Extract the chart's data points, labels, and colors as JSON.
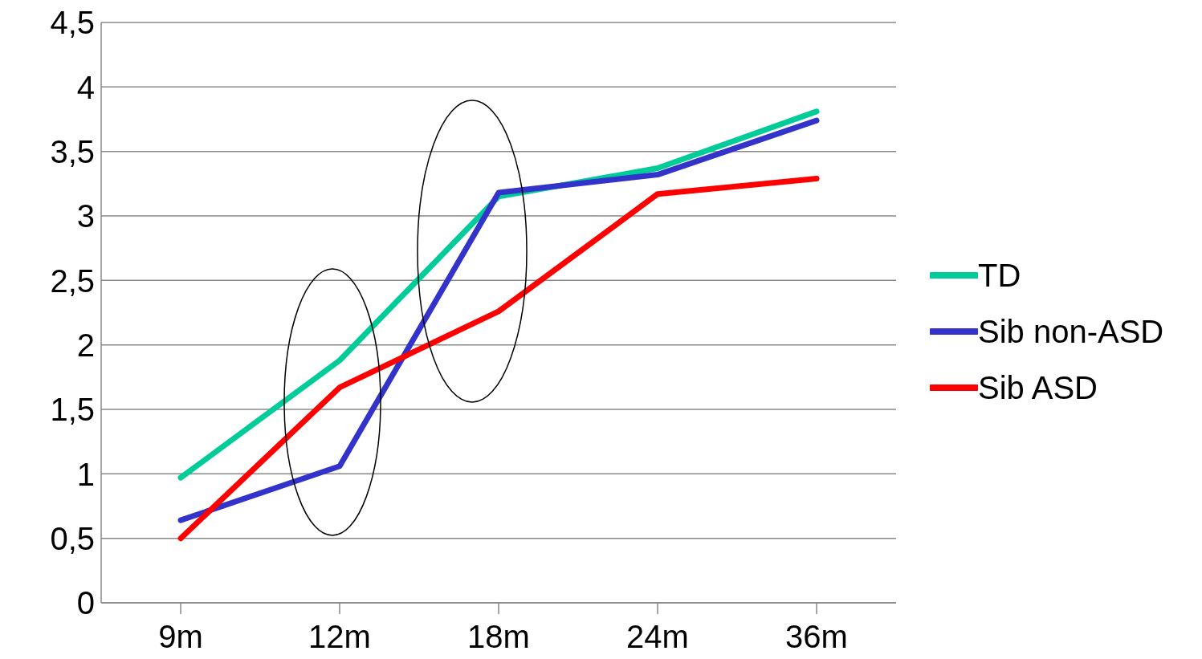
{
  "chart_data": {
    "type": "line",
    "categories": [
      "9m",
      "12m",
      "18m",
      "24m",
      "36m"
    ],
    "series": [
      {
        "name": "TD",
        "color": "#00cc99",
        "values": [
          0.97,
          1.88,
          3.15,
          3.37,
          3.81
        ]
      },
      {
        "name": "Sib non-ASD",
        "color": "#3333cc",
        "values": [
          0.64,
          1.06,
          3.18,
          3.32,
          3.74
        ]
      },
      {
        "name": "Sib ASD",
        "color": "#ff0000",
        "values": [
          0.5,
          1.67,
          2.26,
          3.17,
          3.29
        ]
      }
    ],
    "ylim": [
      0,
      4.5
    ],
    "yticks": [
      0,
      {
        "value": 0.5,
        "label": "0,5"
      },
      1,
      {
        "value": 1.5,
        "label": "1,5"
      },
      2,
      {
        "value": 2.5,
        "label": "2,5"
      },
      3,
      {
        "value": 3.5,
        "label": "3,5"
      },
      4,
      {
        "value": 4.5,
        "label": "4,5"
      }
    ],
    "grid": "y",
    "legend": "right",
    "marker": "none",
    "line_style": "solid"
  }
}
